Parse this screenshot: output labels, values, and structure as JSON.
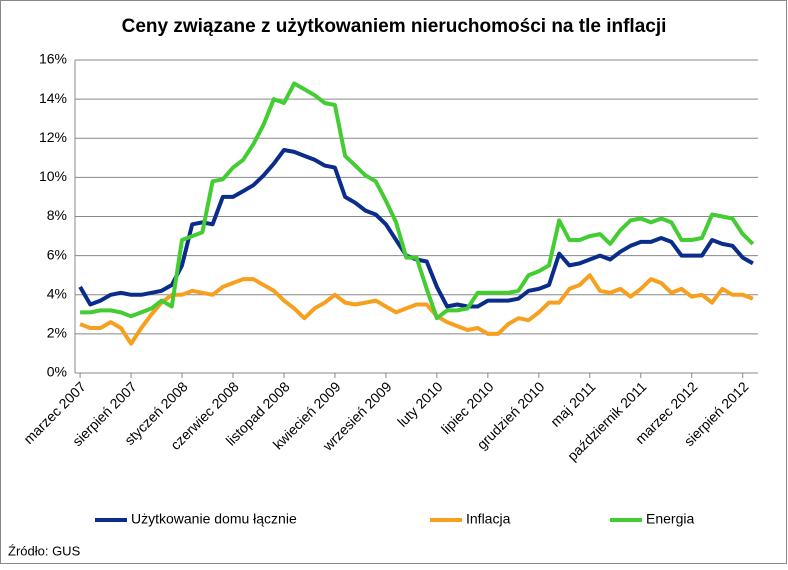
{
  "chart_data": {
    "type": "line",
    "title": "Ceny związane z użytkowaniem nieruchomości na tle inflacji",
    "source": "Źródło: GUS",
    "categories": [
      "marzec 2007",
      null,
      null,
      null,
      null,
      "sierpień 2007",
      null,
      null,
      null,
      null,
      "styczeń 2008",
      null,
      null,
      null,
      null,
      "czerwiec 2008",
      null,
      null,
      null,
      null,
      "listopad 2008",
      null,
      null,
      null,
      null,
      "kwiecień 2009",
      null,
      null,
      null,
      null,
      "wrzesień 2009",
      null,
      null,
      null,
      null,
      "luty 2010",
      null,
      null,
      null,
      null,
      "lipiec 2010",
      null,
      null,
      null,
      null,
      "grudzień 2010",
      null,
      null,
      null,
      null,
      "maj 2011",
      null,
      null,
      null,
      null,
      "październik 2011",
      null,
      null,
      null,
      null,
      "marzec 2012",
      null,
      null,
      null,
      null,
      "sierpień 2012",
      null
    ],
    "series": [
      {
        "name": "Użytkowanie domu łącznie",
        "color": "#0a2d8c",
        "values": [
          4.4,
          3.5,
          3.7,
          4.0,
          4.1,
          4.0,
          4.0,
          4.1,
          4.2,
          4.5,
          5.5,
          7.6,
          7.7,
          7.6,
          9.0,
          9.0,
          9.3,
          9.6,
          10.1,
          10.7,
          11.4,
          11.3,
          11.1,
          10.9,
          10.6,
          10.5,
          9.0,
          8.7,
          8.3,
          8.1,
          7.6,
          6.8,
          6.0,
          5.8,
          5.7,
          4.4,
          3.4,
          3.5,
          3.4,
          3.4,
          3.7,
          3.7,
          3.7,
          3.8,
          4.2,
          4.3,
          4.5,
          6.1,
          5.5,
          5.6,
          5.8,
          6.0,
          5.8,
          6.2,
          6.5,
          6.7,
          6.7,
          6.9,
          6.7,
          6.0,
          6.0,
          6.0,
          6.8,
          6.6,
          6.5,
          5.9,
          5.6
        ]
      },
      {
        "name": "Inflacja",
        "color": "#f7a020",
        "values": [
          2.5,
          2.3,
          2.3,
          2.6,
          2.3,
          1.5,
          2.3,
          3.0,
          3.6,
          4.0,
          4.0,
          4.2,
          4.1,
          4.0,
          4.4,
          4.6,
          4.8,
          4.8,
          4.5,
          4.2,
          3.7,
          3.3,
          2.8,
          3.3,
          3.6,
          4.0,
          3.6,
          3.5,
          3.6,
          3.7,
          3.4,
          3.1,
          3.3,
          3.5,
          3.5,
          2.9,
          2.6,
          2.4,
          2.2,
          2.3,
          2.0,
          2.0,
          2.5,
          2.8,
          2.7,
          3.1,
          3.6,
          3.6,
          4.3,
          4.5,
          5.0,
          4.2,
          4.1,
          4.3,
          3.9,
          4.3,
          4.8,
          4.6,
          4.1,
          4.3,
          3.9,
          4.0,
          3.6,
          4.3,
          4.0,
          4.0,
          3.8
        ]
      },
      {
        "name": "Energia",
        "color": "#44cc33",
        "values": [
          3.1,
          3.1,
          3.2,
          3.2,
          3.1,
          2.9,
          3.1,
          3.3,
          3.7,
          3.4,
          6.8,
          7.0,
          7.2,
          9.8,
          9.9,
          10.5,
          10.9,
          11.7,
          12.7,
          14.0,
          13.8,
          14.8,
          14.5,
          14.2,
          13.8,
          13.7,
          11.1,
          10.6,
          10.1,
          9.8,
          8.8,
          7.7,
          5.9,
          5.9,
          4.3,
          2.8,
          3.2,
          3.2,
          3.3,
          4.1,
          4.1,
          4.1,
          4.1,
          4.2,
          5.0,
          5.2,
          5.5,
          7.8,
          6.8,
          6.8,
          7.0,
          7.1,
          6.6,
          7.3,
          7.8,
          7.9,
          7.7,
          7.9,
          7.7,
          6.8,
          6.8,
          6.9,
          8.1,
          8.0,
          7.9,
          7.1,
          6.6
        ]
      }
    ],
    "ylim": [
      0,
      16
    ],
    "yticks": [
      {
        "value": 0,
        "label": "0%"
      },
      {
        "value": 2,
        "label": "2%"
      },
      {
        "value": 4,
        "label": "4%"
      },
      {
        "value": 6,
        "label": "6%"
      },
      {
        "value": 8,
        "label": "8%"
      },
      {
        "value": 10,
        "label": "10%"
      },
      {
        "value": 12,
        "label": "12%"
      },
      {
        "value": 14,
        "label": "14%"
      },
      {
        "value": 16,
        "label": "16%"
      }
    ],
    "grid": true,
    "legend": "bottom"
  }
}
